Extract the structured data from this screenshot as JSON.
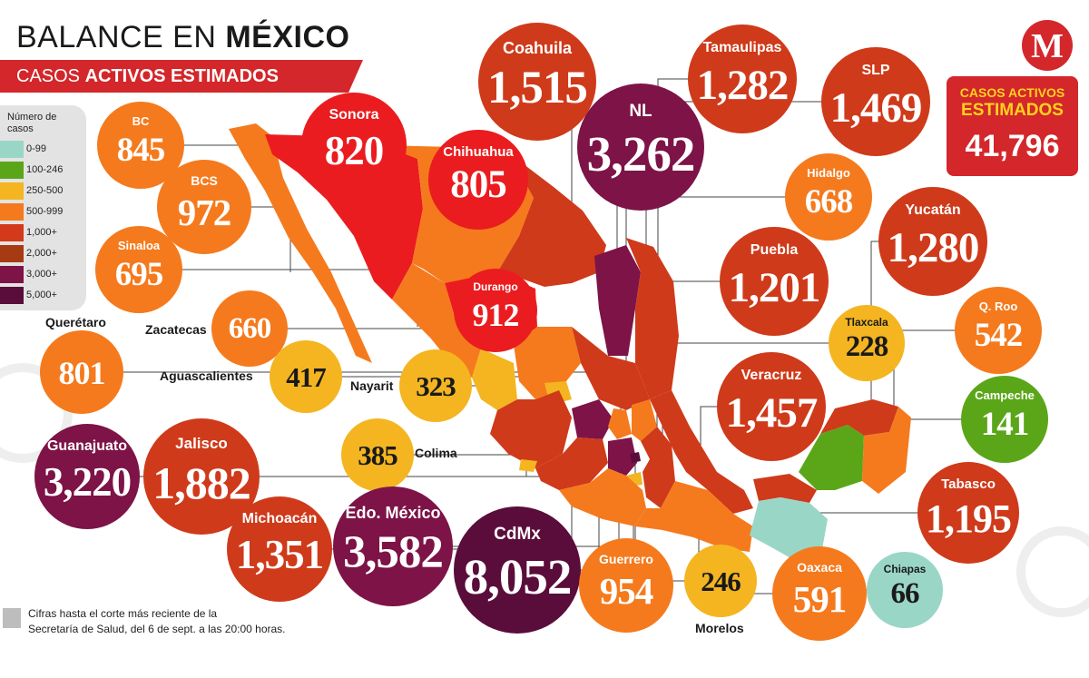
{
  "title_regular": "BALANCE EN ",
  "title_bold": "MÉXICO",
  "subtitle_regular": "CASOS ",
  "subtitle_bold": "ACTIVOS ESTIMADOS",
  "logo_letter": "M",
  "total": {
    "label_line1": "CASOS ACTIVOS",
    "label_line2": "ESTIMADOS",
    "value": "41,796"
  },
  "legend": {
    "title": "Número de casos",
    "items": [
      {
        "label": "0-99",
        "color": "#9ad6c6"
      },
      {
        "label": "100-246",
        "color": "#5aa618"
      },
      {
        "label": "250-500",
        "color": "#f4b521"
      },
      {
        "label": "500-999",
        "color": "#f57a1d"
      },
      {
        "label": "1,000+",
        "color": "#d3391b"
      },
      {
        "label": "2,000+",
        "color": "#a63a12"
      },
      {
        "label": "3,000+",
        "color": "#7d1347"
      },
      {
        "label": "5,000+",
        "color": "#5a0d3a"
      }
    ]
  },
  "colors": {
    "red": "#ea1c1f",
    "orange": "#f57a1d",
    "rust": "#cf3a1a",
    "purple": "#7d1347",
    "dark_purple": "#5a0d3a",
    "yellow": "#f4b521",
    "green": "#5aa618",
    "teal": "#9ad6c6",
    "bubble_text": "#ffffff",
    "dark_text": "#1a1a1a"
  },
  "states": [
    {
      "name": "BC",
      "value": "845",
      "color": "#f57a1d"
    },
    {
      "name": "Sonora",
      "value": "820",
      "color": "#ea1c1f"
    },
    {
      "name": "Chihuahua",
      "value": "805",
      "color": "#ea1c1f"
    },
    {
      "name": "Coahuila",
      "value": "1,515",
      "color": "#cf3a1a"
    },
    {
      "name": "NL",
      "value": "3,262",
      "color": "#7d1347"
    },
    {
      "name": "Tamaulipas",
      "value": "1,282",
      "color": "#cf3a1a"
    },
    {
      "name": "SLP",
      "value": "1,469",
      "color": "#cf3a1a"
    },
    {
      "name": "Hidalgo",
      "value": "668",
      "color": "#f57a1d"
    },
    {
      "name": "BCS",
      "value": "972",
      "color": "#f57a1d"
    },
    {
      "name": "Yucatán",
      "value": "1,280",
      "color": "#cf3a1a"
    },
    {
      "name": "Sinaloa",
      "value": "695",
      "color": "#f57a1d"
    },
    {
      "name": "Puebla",
      "value": "1,201",
      "color": "#cf3a1a"
    },
    {
      "name": "Durango",
      "value": "912",
      "color": "#ea1c1f"
    },
    {
      "name": "Zacatecas",
      "value": "660",
      "color": "#f57a1d"
    },
    {
      "name": "Querétaro",
      "value": "801",
      "color": "#f57a1d"
    },
    {
      "name": "Tlaxcala",
      "value": "228",
      "color": "#f4b521"
    },
    {
      "name": "Q. Roo",
      "value": "542",
      "color": "#f57a1d"
    },
    {
      "name": "Aguascalientes",
      "value": "417",
      "color": "#f4b521"
    },
    {
      "name": "Nayarit",
      "value": "323",
      "color": "#f4b521"
    },
    {
      "name": "Veracruz",
      "value": "1,457",
      "color": "#cf3a1a"
    },
    {
      "name": "Campeche",
      "value": "141",
      "color": "#5aa618"
    },
    {
      "name": "Guanajuato",
      "value": "3,220",
      "color": "#7d1347"
    },
    {
      "name": "Jalisco",
      "value": "1,882",
      "color": "#cf3a1a"
    },
    {
      "name": "Colima",
      "value": "385",
      "color": "#f4b521"
    },
    {
      "name": "Tabasco",
      "value": "1,195",
      "color": "#cf3a1a"
    },
    {
      "name": "Michoacán",
      "value": "1,351",
      "color": "#cf3a1a"
    },
    {
      "name": "Edo. México",
      "value": "3,582",
      "color": "#7d1347"
    },
    {
      "name": "CdMx",
      "value": "8,052",
      "color": "#5a0d3a"
    },
    {
      "name": "Guerrero",
      "value": "954",
      "color": "#f57a1d"
    },
    {
      "name": "Morelos",
      "value": "246",
      "color": "#f4b521"
    },
    {
      "name": "Oaxaca",
      "value": "591",
      "color": "#f57a1d"
    },
    {
      "name": "Chiapas",
      "value": "66",
      "color": "#9ad6c6"
    }
  ],
  "footnote": {
    "line1": "Cifras hasta el corte más reciente de la",
    "line2": "Secretaría de Salud, del 6 de sept. a las 20:00 horas."
  }
}
